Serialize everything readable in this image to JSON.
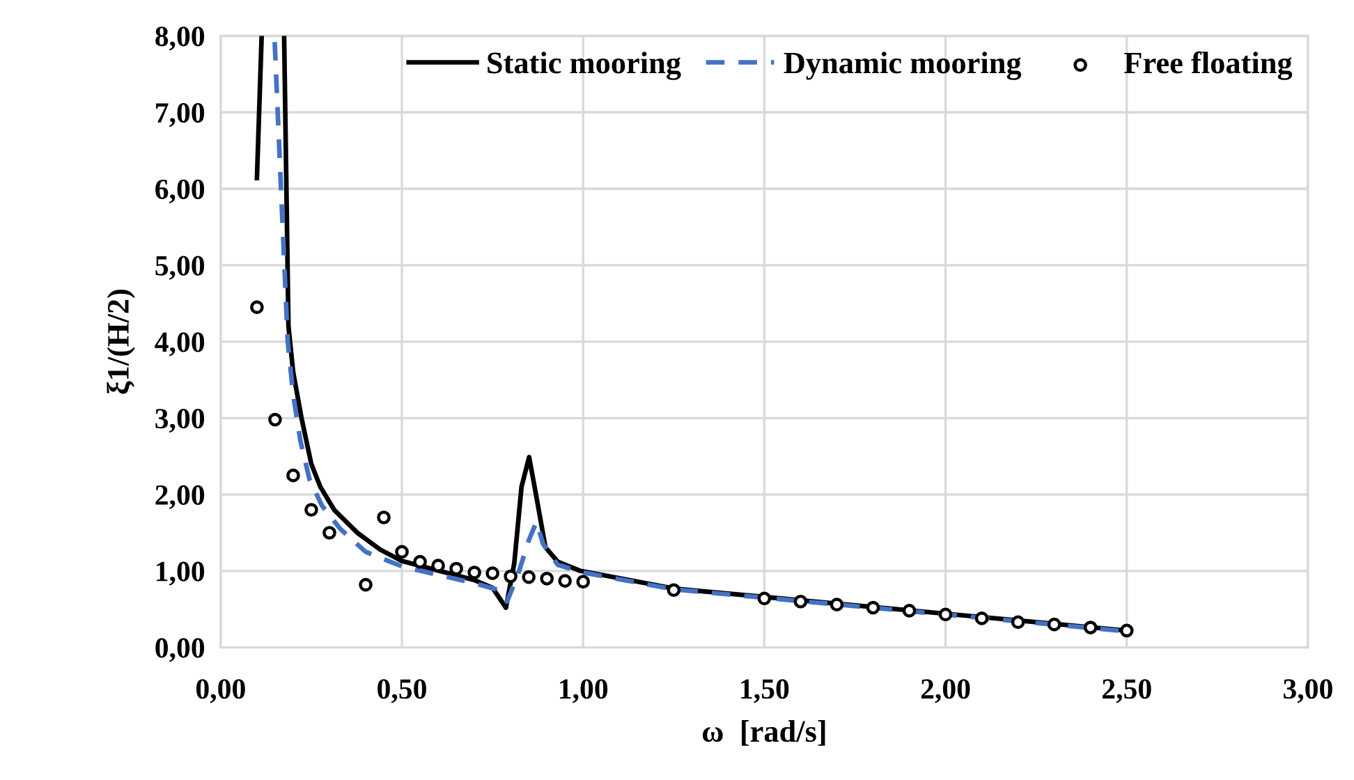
{
  "chart_data": {
    "type": "line",
    "xlabel": "ω  [rad/s]",
    "ylabel": "ξ1/(H/2)",
    "xlim": [
      0,
      3
    ],
    "ylim": [
      0,
      8
    ],
    "xticks": [
      {
        "value": 0,
        "label": "0,00"
      },
      {
        "value": 0.5,
        "label": "0,50"
      },
      {
        "value": 1,
        "label": "1,00"
      },
      {
        "value": 1.5,
        "label": "1,50"
      },
      {
        "value": 2,
        "label": "2,00"
      },
      {
        "value": 2.5,
        "label": "2,50"
      },
      {
        "value": 3,
        "label": "3,00"
      }
    ],
    "yticks": [
      {
        "value": 0,
        "label": "0,00"
      },
      {
        "value": 1,
        "label": "1,00"
      },
      {
        "value": 2,
        "label": "2,00"
      },
      {
        "value": 3,
        "label": "3,00"
      },
      {
        "value": 4,
        "label": "4,00"
      },
      {
        "value": 5,
        "label": "5,00"
      },
      {
        "value": 6,
        "label": "6,00"
      },
      {
        "value": 7,
        "label": "7,00"
      },
      {
        "value": 8,
        "label": "8,00"
      }
    ],
    "grid": true,
    "legend": "top right",
    "series": [
      {
        "name": "Static mooring",
        "color": "#000000",
        "line_style": "solid",
        "marker": "none",
        "x": [
          0.1,
          0.113,
          null,
          0.175,
          0.187,
          0.2,
          0.223,
          0.25,
          0.275,
          0.313,
          0.377,
          0.44,
          0.5,
          0.62,
          0.7,
          0.75,
          0.787,
          0.81,
          0.83,
          0.851,
          0.87,
          0.896,
          0.93,
          0.993,
          1.25,
          1.5,
          2.0,
          2.5
        ],
        "values": [
          6.14,
          8.0,
          null,
          8.0,
          4.2,
          3.6,
          3.0,
          2.4,
          2.1,
          1.8,
          1.5,
          1.28,
          1.13,
          0.98,
          0.88,
          0.78,
          0.52,
          1.1,
          2.1,
          2.49,
          2.0,
          1.31,
          1.12,
          1.0,
          0.77,
          0.66,
          0.44,
          0.22
        ]
      },
      {
        "name": "Dynamic mooring",
        "color": "#4472c4",
        "line_style": "dashed",
        "marker": "none",
        "x": [
          0.149,
          0.17,
          0.185,
          0.2,
          0.22,
          0.245,
          0.28,
          0.33,
          0.4,
          0.5,
          0.6,
          0.7,
          0.76,
          0.79,
          0.82,
          0.85,
          0.871,
          0.89,
          0.93,
          1.0,
          1.25,
          1.5,
          2.0,
          2.5
        ],
        "values": [
          7.92,
          5.6,
          4.0,
          3.3,
          2.7,
          2.2,
          1.85,
          1.55,
          1.25,
          1.06,
          0.95,
          0.84,
          0.76,
          0.6,
          0.95,
          1.4,
          1.64,
          1.35,
          1.08,
          0.98,
          0.76,
          0.65,
          0.43,
          0.21
        ]
      },
      {
        "name": "Free floating",
        "type": "scatter",
        "color": "#000000",
        "marker": "circle",
        "x": [
          0.1,
          0.15,
          0.2,
          0.25,
          0.3,
          0.4,
          0.45,
          0.5,
          0.55,
          0.6,
          0.65,
          0.7,
          0.75,
          0.8,
          0.85,
          0.9,
          0.95,
          1.0,
          1.25,
          1.5,
          1.6,
          1.7,
          1.8,
          1.9,
          2.0,
          2.1,
          2.2,
          2.3,
          2.4,
          2.5
        ],
        "values": [
          4.45,
          2.98,
          2.25,
          1.8,
          1.5,
          0.82,
          1.7,
          1.25,
          1.12,
          1.07,
          1.03,
          0.98,
          0.97,
          0.93,
          0.92,
          0.9,
          0.87,
          0.86,
          0.75,
          0.64,
          0.6,
          0.56,
          0.52,
          0.48,
          0.43,
          0.38,
          0.33,
          0.3,
          0.26,
          0.22
        ]
      }
    ]
  }
}
